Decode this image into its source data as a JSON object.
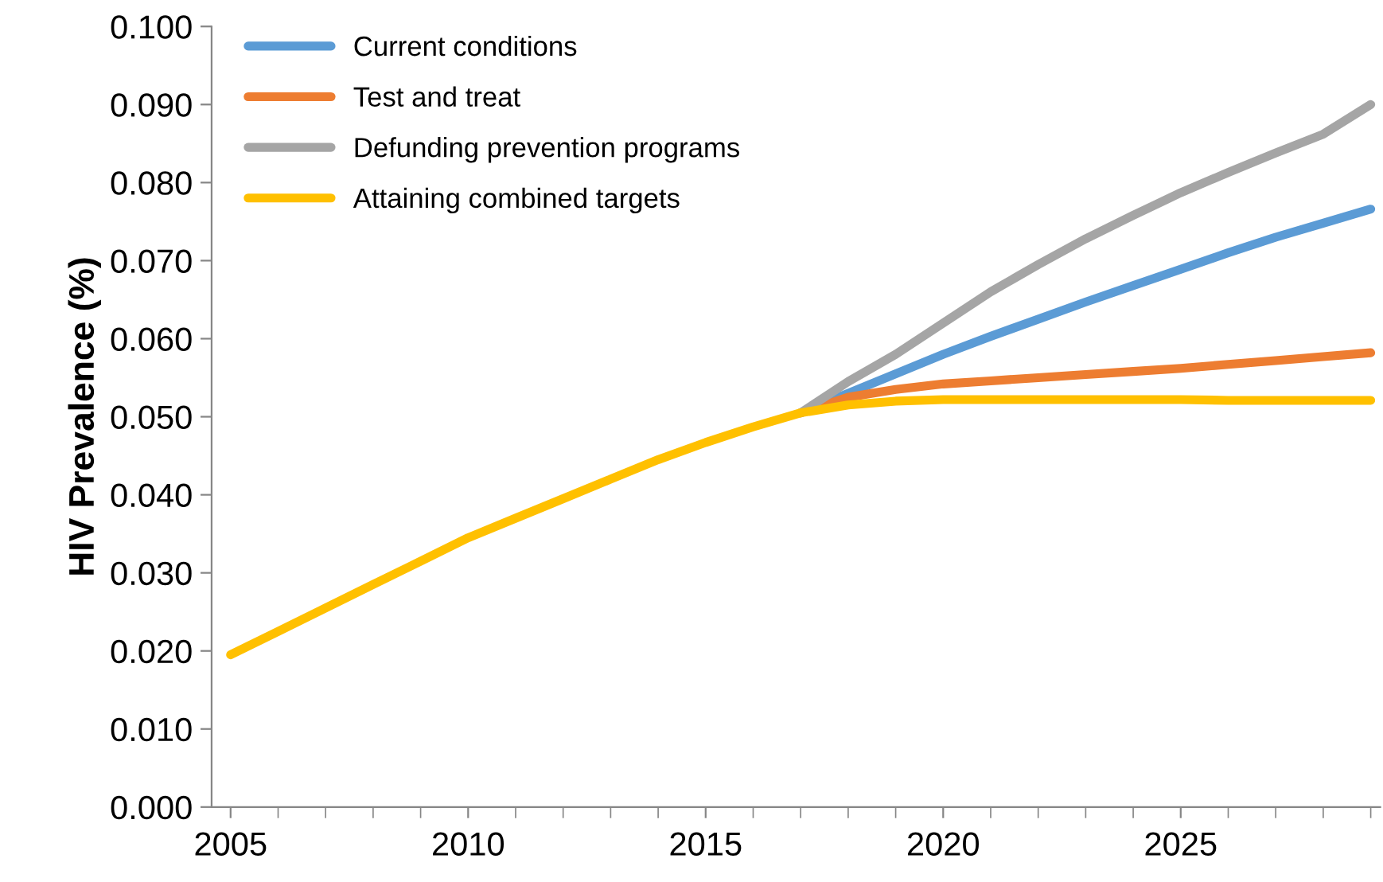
{
  "chart_data": {
    "type": "line",
    "ylabel": "HIV Prevalence (%)",
    "x": [
      2005,
      2006,
      2007,
      2008,
      2009,
      2010,
      2011,
      2012,
      2013,
      2014,
      2015,
      2016,
      2017,
      2018,
      2019,
      2020,
      2021,
      2022,
      2023,
      2024,
      2025,
      2026,
      2027,
      2028,
      2029
    ],
    "series": [
      {
        "name": "Current conditions",
        "color": "#5b9bd5",
        "values": [
          null,
          null,
          null,
          null,
          null,
          null,
          null,
          null,
          null,
          null,
          null,
          null,
          0.0505,
          0.053,
          0.0555,
          0.058,
          0.0603,
          0.0625,
          0.0647,
          0.0668,
          0.0689,
          0.071,
          0.073,
          0.0748,
          0.0766
        ]
      },
      {
        "name": "Test and treat",
        "color": "#ed7d31",
        "values": [
          null,
          null,
          null,
          null,
          null,
          null,
          null,
          null,
          null,
          null,
          null,
          null,
          0.0505,
          0.0525,
          0.0535,
          0.0542,
          0.0546,
          0.055,
          0.0554,
          0.0558,
          0.0562,
          0.0567,
          0.0572,
          0.0577,
          0.0582
        ]
      },
      {
        "name": "Defunding prevention programs",
        "color": "#a5a5a5",
        "values": [
          null,
          null,
          null,
          null,
          null,
          null,
          null,
          null,
          null,
          null,
          null,
          null,
          0.0505,
          0.0545,
          0.058,
          0.062,
          0.066,
          0.0695,
          0.0728,
          0.0758,
          0.0787,
          0.0813,
          0.0838,
          0.0862,
          0.09
        ]
      },
      {
        "name": "Attaining combined targets",
        "color": "#ffc000",
        "values": [
          0.0195,
          0.0225,
          0.0255,
          0.0285,
          0.0315,
          0.0345,
          0.037,
          0.0395,
          0.042,
          0.0445,
          0.0467,
          0.0487,
          0.0505,
          0.0515,
          0.052,
          0.0522,
          0.0522,
          0.0522,
          0.0522,
          0.0522,
          0.0522,
          0.0521,
          0.0521,
          0.0521,
          0.0521
        ]
      }
    ],
    "xlim": [
      2004.6,
      2029.2
    ],
    "xticks": [
      2005,
      2010,
      2015,
      2020,
      2025
    ],
    "ylim": [
      0,
      0.1
    ],
    "yticks": [
      {
        "value": 0,
        "label": "0.000"
      },
      {
        "value": 0.01,
        "label": "0.010"
      },
      {
        "value": 0.02,
        "label": "0.020"
      },
      {
        "value": 0.03,
        "label": "0.030"
      },
      {
        "value": 0.04,
        "label": "0.040"
      },
      {
        "value": 0.05,
        "label": "0.050"
      },
      {
        "value": 0.06,
        "label": "0.060"
      },
      {
        "value": 0.07,
        "label": "0.070"
      },
      {
        "value": 0.08,
        "label": "0.080"
      },
      {
        "value": 0.09,
        "label": "0.090"
      },
      {
        "value": 0.1,
        "label": "0.100"
      }
    ],
    "grid": false,
    "legend": "top left",
    "marker": "none",
    "line_style": "solid"
  }
}
